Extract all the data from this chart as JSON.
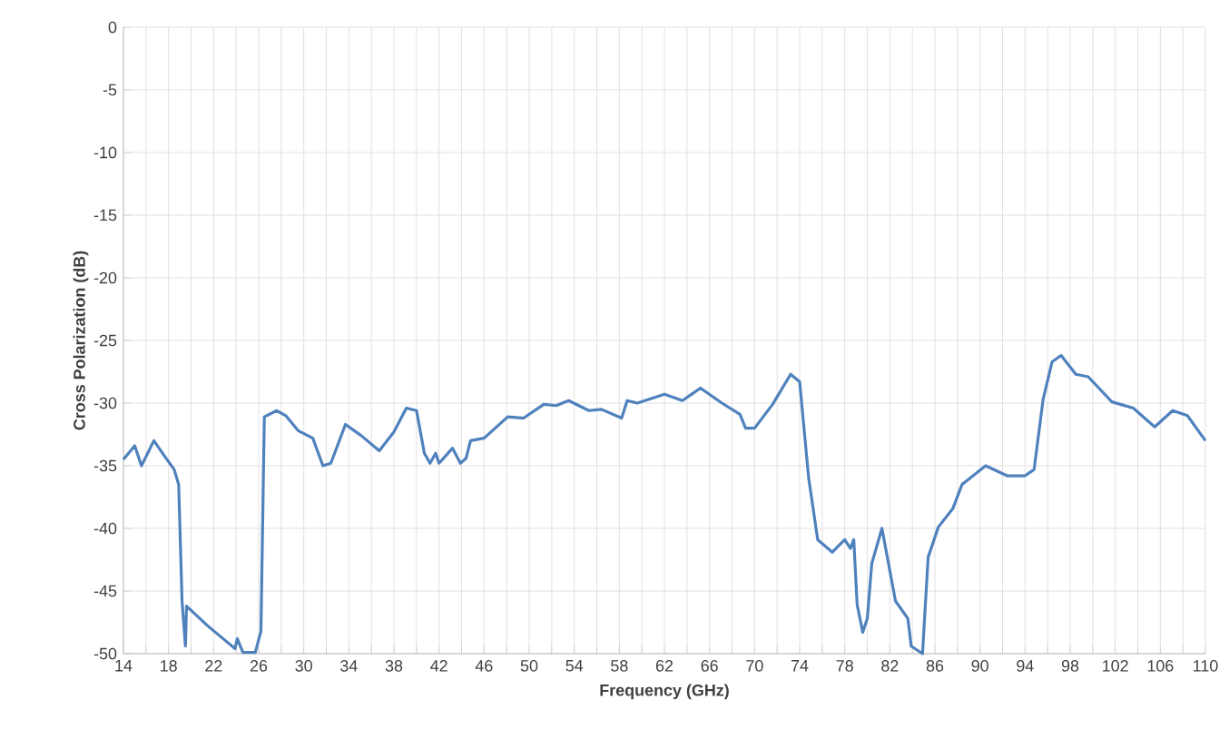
{
  "chart_data": {
    "type": "line",
    "xlabel": "Frequency (GHz)",
    "ylabel": "Cross Polarization (dB)",
    "xlim": [
      14,
      110
    ],
    "ylim": [
      -50,
      0
    ],
    "xticks": [
      14,
      {
        "value": 16,
        "label": null
      },
      18,
      {
        "value": 20,
        "label": null
      },
      22,
      {
        "value": 24,
        "label": null
      },
      26,
      {
        "value": 28,
        "label": null
      },
      30,
      {
        "value": 32,
        "label": null
      },
      34,
      {
        "value": 36,
        "label": null
      },
      38,
      {
        "value": 40,
        "label": null
      },
      42,
      {
        "value": 44,
        "label": null
      },
      46,
      {
        "value": 48,
        "label": null
      },
      50,
      {
        "value": 52,
        "label": null
      },
      54,
      {
        "value": 56,
        "label": null
      },
      58,
      {
        "value": 60,
        "label": null
      },
      62,
      {
        "value": 64,
        "label": null
      },
      66,
      {
        "value": 68,
        "label": null
      },
      70,
      {
        "value": 72,
        "label": null
      },
      74,
      {
        "value": 76,
        "label": null
      },
      78,
      {
        "value": 80,
        "label": null
      },
      82,
      {
        "value": 84,
        "label": null
      },
      86,
      {
        "value": 88,
        "label": null
      },
      90,
      {
        "value": 92,
        "label": null
      },
      94,
      {
        "value": 96,
        "label": null
      },
      98,
      {
        "value": 100,
        "label": null
      },
      102,
      {
        "value": 104,
        "label": null
      },
      106,
      {
        "value": 108,
        "label": null
      },
      110
    ],
    "yticks": [
      -50,
      -45,
      -40,
      -35,
      -30,
      -25,
      -20,
      -15,
      -10,
      -5,
      0
    ],
    "grid": true,
    "line_style": "solid",
    "series": [
      {
        "color": "#4f81bd",
        "x": [
          14,
          15,
          15.6,
          16.7,
          17.7,
          18.5,
          18.9,
          19.2,
          19.5,
          19.6,
          21.5,
          23.9,
          24.1,
          24.6,
          25.7,
          26.2,
          26.5,
          27.6,
          28.4,
          29.5,
          30.8,
          31.7,
          32.4,
          33.7,
          35.1,
          36.7,
          38.0,
          39.1,
          40.0,
          40.7,
          41.2,
          41.7,
          42.0,
          43.2,
          43.9,
          44.4,
          44.8,
          46.0,
          48.1,
          49.5,
          51.3,
          52.4,
          53.5,
          55.3,
          56.4,
          58.2,
          58.7,
          59.6,
          62.0,
          63.6,
          65.2,
          67.1,
          68.7,
          69.2,
          70.0,
          71.6,
          73.2,
          74.0,
          74.8,
          75.6,
          76.9,
          78.0,
          78.5,
          78.8,
          79.1,
          79.6,
          80.0,
          80.4,
          81.3,
          82.5,
          83.6,
          83.9,
          84.9,
          85.4,
          86.3,
          87.6,
          88.4,
          90.5,
          92.4,
          94.0,
          94.8,
          95.6,
          96.4,
          97.2,
          98.5,
          99.6,
          101.7,
          103.6,
          105.5,
          107.1,
          108.4,
          110
        ],
        "values": [
          -34.5,
          -33.4,
          -35.0,
          -33.0,
          -34.3,
          -35.3,
          -36.5,
          -45.8,
          -49.4,
          -46.2,
          -47.8,
          -49.6,
          -48.8,
          -49.9,
          -49.9,
          -48.2,
          -31.1,
          -30.6,
          -31.0,
          -32.2,
          -32.8,
          -35.0,
          -34.8,
          -31.7,
          -32.6,
          -33.8,
          -32.3,
          -30.4,
          -30.6,
          -34.0,
          -34.8,
          -34.0,
          -34.8,
          -33.6,
          -34.8,
          -34.4,
          -33.0,
          -32.8,
          -31.1,
          -31.2,
          -30.1,
          -30.2,
          -29.8,
          -30.6,
          -30.5,
          -31.2,
          -29.8,
          -30.0,
          -29.3,
          -29.8,
          -28.8,
          -30.0,
          -30.9,
          -32.0,
          -32.0,
          -30.1,
          -27.7,
          -28.3,
          -36.0,
          -40.9,
          -41.9,
          -40.9,
          -41.6,
          -40.9,
          -46.1,
          -48.3,
          -47.2,
          -42.8,
          -40.0,
          -45.8,
          -47.2,
          -49.4,
          -50.0,
          -42.3,
          -39.9,
          -38.4,
          -36.5,
          -35.0,
          -35.8,
          -35.8,
          -35.3,
          -29.7,
          -26.7,
          -26.2,
          -27.7,
          -27.9,
          -29.9,
          -30.4,
          -31.9,
          -30.6,
          -31.0,
          -33.0
        ]
      }
    ]
  }
}
